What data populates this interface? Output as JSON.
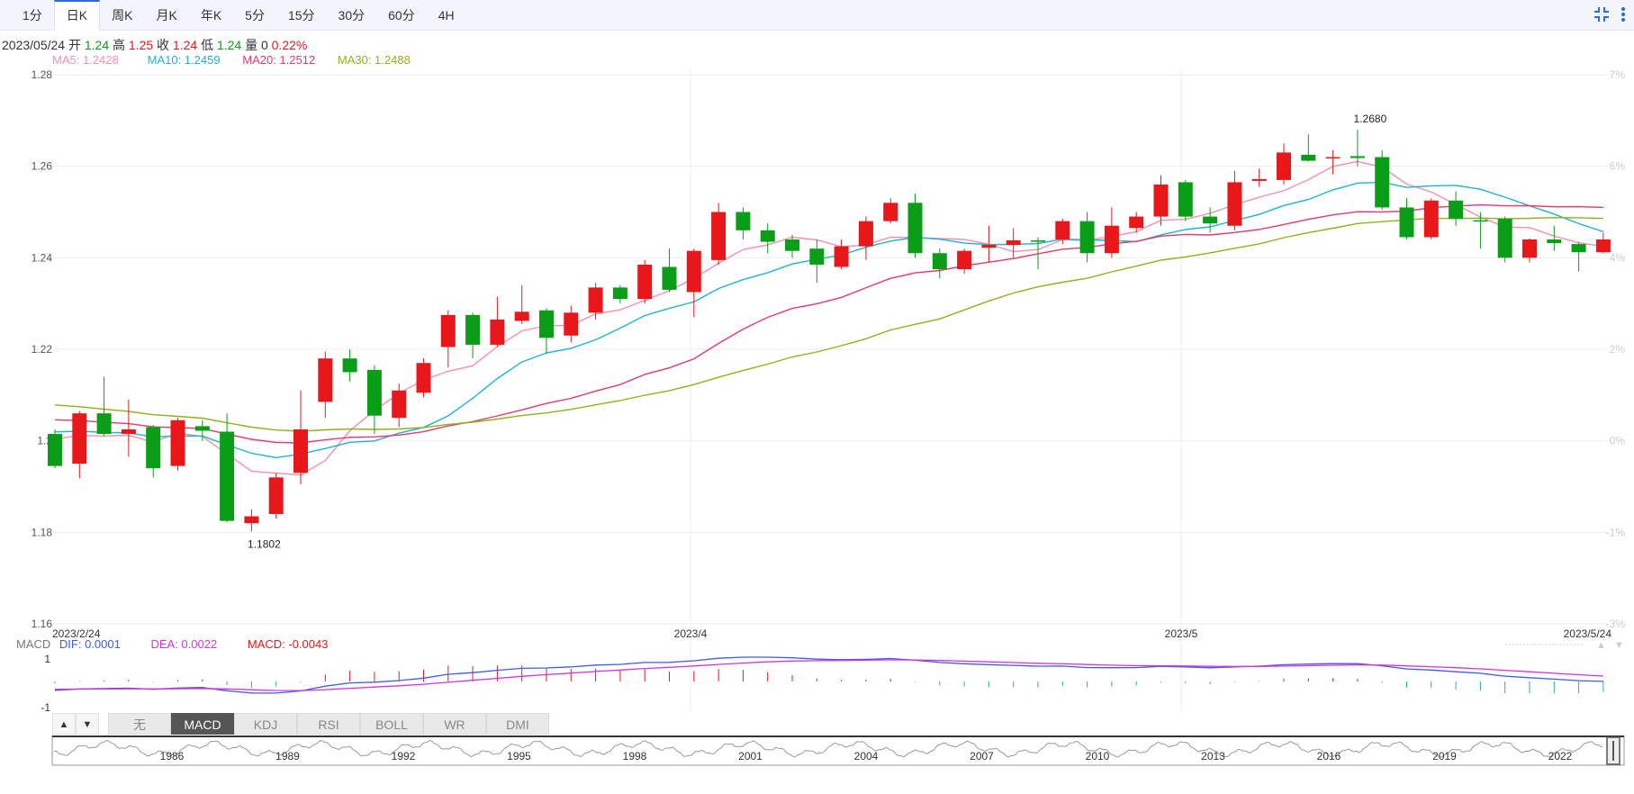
{
  "toolbar": {
    "tabs": [
      "1分",
      "日K",
      "周K",
      "月K",
      "年K",
      "5分",
      "15分",
      "30分",
      "60分",
      "4H"
    ],
    "active_tab": "日K",
    "icons": [
      "compress-icon",
      "more-vertical-icon"
    ]
  },
  "info": {
    "date": "2023/05/24",
    "open_label": "开",
    "open": "1.24",
    "high_label": "高",
    "high": "1.25",
    "close_label": "收",
    "close": "1.24",
    "low_label": "低",
    "low": "1.24",
    "volume_label": "量",
    "volume": "0",
    "change": "0.22%"
  },
  "ma": [
    {
      "label": "MA5: 1.2428",
      "color": "#f58fb0"
    },
    {
      "label": "MA10: 1.2459",
      "color": "#1fb3d2"
    },
    {
      "label": "MA20: 1.2512",
      "color": "#e33a6b"
    },
    {
      "label": "MA30: 1.2488",
      "color": "#8fb21c"
    }
  ],
  "macd_info": {
    "title": "MACD",
    "dif": "DIF: 0.0001",
    "dea": "DEA: 0.0022",
    "macd": "MACD: -0.0043",
    "dif_color": "#3d5af1",
    "dea_color": "#d534d9",
    "macd_color": "#e8171a"
  },
  "indicator_tabs": [
    "无",
    "MACD",
    "KDJ",
    "RSI",
    "BOLL",
    "WR",
    "DMI"
  ],
  "active_indicator": "MACD",
  "navigator": {
    "years": [
      "1986",
      "1989",
      "1992",
      "1995",
      "1998",
      "2001",
      "2004",
      "2007",
      "2010",
      "2013",
      "2016",
      "2019",
      "2022"
    ]
  },
  "colors": {
    "up": "#e8171a",
    "down": "#0a9d18",
    "grid": "#eeeeee"
  },
  "chart_data": {
    "type": "candlestick",
    "x_labels": [
      "2023/2/24",
      "2023/4",
      "2023/5",
      "2023/5/24"
    ],
    "y_ticks": [
      "1.28",
      "1.26",
      "1.24",
      "1.22",
      "1.2",
      "1.18",
      "1.16"
    ],
    "y_right_ticks": [
      "7%",
      "6%",
      "4%",
      "2%",
      "0%",
      "-1%",
      "-3%"
    ],
    "ylim": [
      1.16,
      1.28
    ],
    "annotations": [
      {
        "text": "1.1802",
        "value": 1.1802
      },
      {
        "text": "1.2680",
        "value": 1.268
      }
    ],
    "candles": [
      [
        1.2015,
        1.1945,
        1.2025,
        1.194
      ],
      [
        1.195,
        1.206,
        1.2065,
        1.1918
      ],
      [
        1.206,
        1.2015,
        1.214,
        1.201
      ],
      [
        1.2015,
        1.2025,
        1.209,
        1.1965
      ],
      [
        1.203,
        1.194,
        1.2035,
        1.192
      ],
      [
        1.1945,
        1.2045,
        1.205,
        1.1935
      ],
      [
        1.2032,
        1.2022,
        1.2045,
        1.2
      ],
      [
        1.202,
        1.1825,
        1.206,
        1.1822
      ],
      [
        1.182,
        1.1835,
        1.185,
        1.1802
      ],
      [
        1.184,
        1.192,
        1.193,
        1.183
      ],
      [
        1.193,
        1.2025,
        1.211,
        1.1905
      ],
      [
        1.2085,
        1.218,
        1.2195,
        1.205
      ],
      [
        1.218,
        1.215,
        1.22,
        1.213
      ],
      [
        1.2155,
        1.2055,
        1.2165,
        1.2015
      ],
      [
        1.205,
        1.211,
        1.2125,
        1.203
      ],
      [
        1.2105,
        1.217,
        1.218,
        1.2095
      ],
      [
        1.2205,
        1.2275,
        1.2285,
        1.216
      ],
      [
        1.2275,
        1.221,
        1.228,
        1.218
      ],
      [
        1.221,
        1.2265,
        1.2315,
        1.2205
      ],
      [
        1.2262,
        1.2282,
        1.234,
        1.2255
      ],
      [
        1.2285,
        1.2225,
        1.229,
        1.219
      ],
      [
        1.223,
        1.228,
        1.2295,
        1.2215
      ],
      [
        1.228,
        1.2335,
        1.2345,
        1.2265
      ],
      [
        1.2335,
        1.231,
        1.234,
        1.23
      ],
      [
        1.231,
        1.2385,
        1.2395,
        1.23
      ],
      [
        1.238,
        1.233,
        1.242,
        1.2325
      ],
      [
        1.2325,
        1.2415,
        1.242,
        1.227
      ],
      [
        1.2395,
        1.25,
        1.252,
        1.2385
      ],
      [
        1.25,
        1.246,
        1.251,
        1.244
      ],
      [
        1.246,
        1.2435,
        1.2475,
        1.241
      ],
      [
        1.244,
        1.2415,
        1.245,
        1.24
      ],
      [
        1.242,
        1.2385,
        1.244,
        1.2345
      ],
      [
        1.238,
        1.2425,
        1.244,
        1.2375
      ],
      [
        1.2425,
        1.248,
        1.249,
        1.2395
      ],
      [
        1.248,
        1.252,
        1.253,
        1.2475
      ],
      [
        1.252,
        1.241,
        1.254,
        1.24
      ],
      [
        1.241,
        1.2375,
        1.242,
        1.2355
      ],
      [
        1.2375,
        1.2415,
        1.242,
        1.2365
      ],
      [
        1.2422,
        1.2428,
        1.247,
        1.239
      ],
      [
        1.2428,
        1.2438,
        1.2465,
        1.24
      ],
      [
        1.2438,
        1.2435,
        1.2445,
        1.2375
      ],
      [
        1.244,
        1.248,
        1.2485,
        1.243
      ],
      [
        1.248,
        1.241,
        1.25,
        1.239
      ],
      [
        1.241,
        1.247,
        1.251,
        1.24
      ],
      [
        1.2465,
        1.249,
        1.25,
        1.2455
      ],
      [
        1.249,
        1.256,
        1.258,
        1.247
      ],
      [
        1.2565,
        1.249,
        1.257,
        1.248
      ],
      [
        1.249,
        1.2475,
        1.251,
        1.2455
      ],
      [
        1.247,
        1.2565,
        1.259,
        1.246
      ],
      [
        1.2568,
        1.2572,
        1.2595,
        1.2555
      ],
      [
        1.257,
        1.263,
        1.265,
        1.256
      ],
      [
        1.2625,
        1.2612,
        1.267,
        1.261
      ],
      [
        1.262,
        1.262,
        1.2635,
        1.2582
      ],
      [
        1.2622,
        1.2618,
        1.268,
        1.26
      ],
      [
        1.262,
        1.251,
        1.2635,
        1.2505
      ],
      [
        1.251,
        1.2445,
        1.253,
        1.244
      ],
      [
        1.2445,
        1.2525,
        1.253,
        1.244
      ],
      [
        1.2525,
        1.2485,
        1.2545,
        1.247
      ],
      [
        1.2482,
        1.248,
        1.25,
        1.242
      ],
      [
        1.2485,
        1.24,
        1.249,
        1.239
      ],
      [
        1.24,
        1.244,
        1.2442,
        1.239
      ],
      [
        1.244,
        1.2432,
        1.247,
        1.2415
      ],
      [
        1.243,
        1.2412,
        1.2435,
        1.237
      ],
      [
        1.2412,
        1.244,
        1.2455,
        1.241
      ]
    ]
  }
}
